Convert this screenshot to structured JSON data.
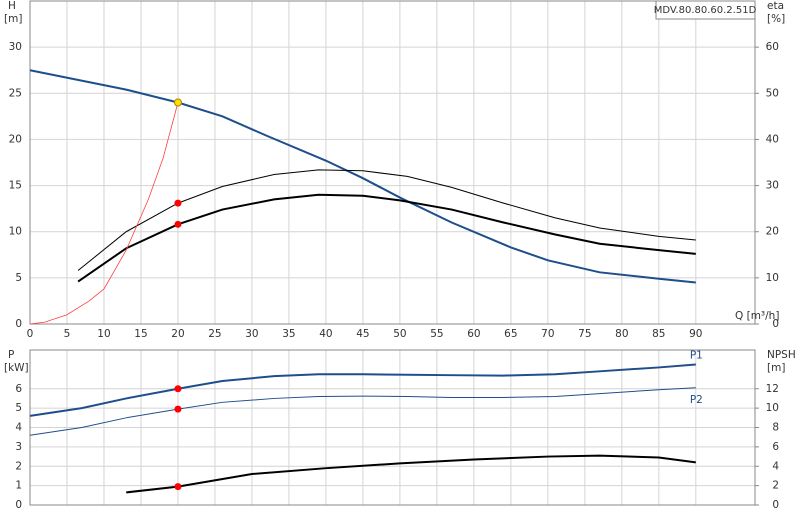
{
  "chart_data": [
    {
      "type": "line",
      "title": "MDV.80.80.60.2.51D",
      "x_label": "Q [m³/h]",
      "y_label": "H",
      "y_unit": "[m]",
      "y2_label": "eta",
      "y2_unit": "[%]",
      "xlim": [
        0,
        98
      ],
      "xticks": [
        0,
        5,
        10,
        15,
        20,
        25,
        30,
        35,
        40,
        45,
        50,
        55,
        60,
        65,
        70,
        75,
        80,
        85,
        90
      ],
      "ylim": [
        0,
        35
      ],
      "yticks": [
        0,
        5,
        10,
        15,
        20,
        25,
        30
      ],
      "y2lim": [
        0,
        70
      ],
      "y2ticks": [
        0,
        10,
        20,
        30,
        40,
        50,
        60
      ],
      "grid": true,
      "show_xtick_labels": true,
      "series": [
        {
          "color": "#1f4e8c",
          "width": 2,
          "x": [
            0,
            13,
            20,
            26,
            32,
            40,
            45,
            50,
            57,
            65,
            70,
            77,
            85,
            90
          ],
          "values": [
            27.5,
            25.4,
            24,
            22.5,
            20.4,
            17.7,
            15.8,
            13.7,
            11,
            8.3,
            6.9,
            5.6,
            4.9,
            4.5
          ]
        },
        {
          "color": "#000000",
          "width": 2,
          "axis": "y2",
          "x": [
            6.5,
            13,
            20,
            26,
            33,
            39,
            45,
            50,
            57,
            64,
            71,
            77,
            85,
            90
          ],
          "values": [
            9.2,
            16.4,
            21.6,
            24.8,
            27,
            28,
            27.8,
            26.8,
            24.8,
            22,
            19.4,
            17.4,
            16,
            15.2
          ]
        },
        {
          "color": "#000000",
          "width": 1,
          "axis": "y2",
          "x": [
            6.5,
            13,
            20,
            26,
            33,
            39,
            45,
            51,
            57,
            64,
            71,
            77,
            85,
            90
          ],
          "values": [
            11.6,
            20,
            26.2,
            29.8,
            32.4,
            33.4,
            33.2,
            32,
            29.6,
            26.2,
            23,
            20.8,
            19,
            18.2
          ]
        },
        {
          "color": "#ff4040",
          "width": 0.8,
          "x": [
            0,
            2,
            5,
            8,
            10,
            13,
            16,
            18,
            20
          ],
          "values": [
            0,
            0.2,
            1,
            2.5,
            3.8,
            8,
            13.5,
            18,
            24
          ]
        }
      ],
      "markers": [
        {
          "x": 20,
          "y": 24,
          "color": "#ffe000"
        },
        {
          "x": 20,
          "y": 21.6,
          "axis": "y2",
          "color": "#ff0000"
        },
        {
          "x": 20,
          "y": 26.2,
          "axis": "y2",
          "color": "#ff0000"
        }
      ]
    },
    {
      "type": "line",
      "y_label": "P",
      "y_unit": "[kW]",
      "y2_label": "NPSH",
      "y2_unit": "[m]",
      "xlim": [
        0,
        98
      ],
      "xticks": [
        0,
        5,
        10,
        15,
        20,
        25,
        30,
        35,
        40,
        45,
        50,
        55,
        60,
        65,
        70,
        75,
        80,
        85,
        90
      ],
      "ylim": [
        0,
        8
      ],
      "yticks": [
        0,
        1,
        2,
        3,
        4,
        5,
        6
      ],
      "y2lim": [
        0,
        16
      ],
      "y2ticks": [
        0,
        2,
        4,
        6,
        8,
        10,
        12
      ],
      "grid": true,
      "show_xtick_labels": false,
      "series": [
        {
          "name": "P1",
          "color": "#1f4e8c",
          "width": 2,
          "x": [
            0,
            7,
            13,
            20,
            26,
            33,
            39,
            45,
            51,
            57,
            64,
            71,
            77,
            85,
            90
          ],
          "values": [
            4.6,
            5,
            5.5,
            6,
            6.4,
            6.65,
            6.75,
            6.75,
            6.72,
            6.7,
            6.68,
            6.75,
            6.9,
            7.1,
            7.25
          ]
        },
        {
          "name": "P2",
          "color": "#1f4e8c",
          "width": 1,
          "x": [
            0,
            7,
            13,
            20,
            26,
            33,
            39,
            45,
            51,
            57,
            64,
            71,
            77,
            85,
            90
          ],
          "values": [
            3.6,
            4,
            4.5,
            4.95,
            5.3,
            5.5,
            5.6,
            5.62,
            5.6,
            5.55,
            5.55,
            5.6,
            5.75,
            5.95,
            6.05
          ]
        },
        {
          "color": "#000000",
          "width": 2,
          "axis": "y2",
          "x": [
            13,
            20,
            30,
            40,
            50,
            60,
            70,
            77,
            85,
            90
          ],
          "values": [
            1.3,
            1.9,
            3.2,
            3.8,
            4.3,
            4.7,
            5,
            5.1,
            4.9,
            4.4
          ]
        }
      ],
      "markers": [
        {
          "x": 20,
          "y": 6,
          "color": "#ff0000"
        },
        {
          "x": 20,
          "y": 4.95,
          "color": "#ff0000"
        },
        {
          "x": 20,
          "y": 1.9,
          "axis": "y2",
          "color": "#ff0000"
        }
      ]
    }
  ]
}
